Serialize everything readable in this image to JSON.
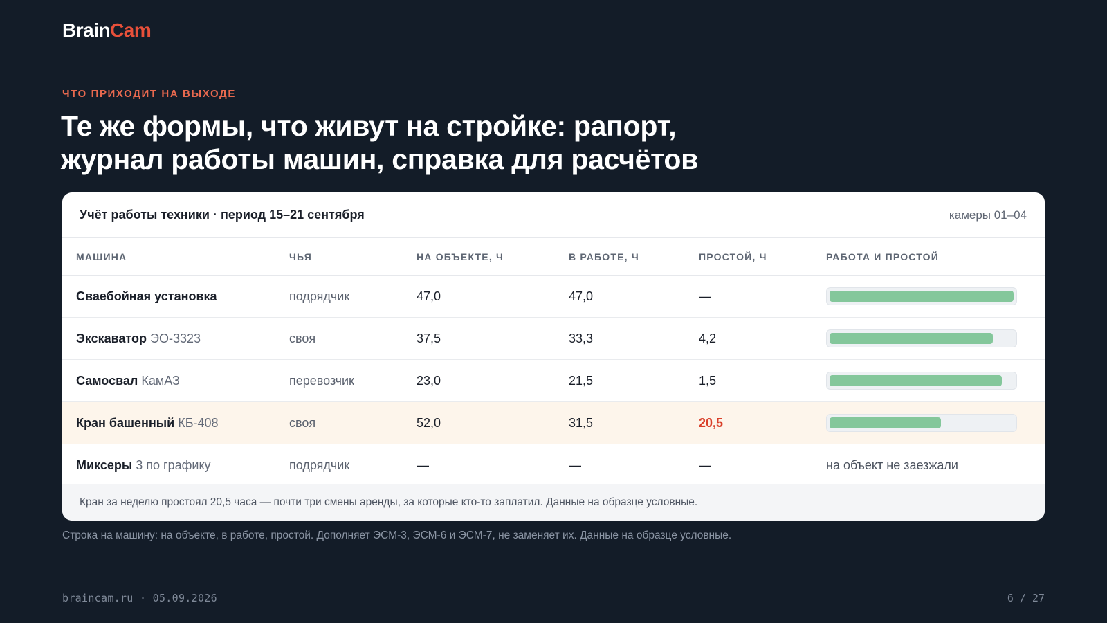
{
  "brand": {
    "part1": "Brain",
    "part2": "Cam"
  },
  "eyebrow": "ЧТО ПРИХОДИТ НА ВЫХОДЕ",
  "headline": {
    "line1": "Те же формы, что живут на стройке: рапорт,",
    "line2": "журнал работы машин, справка для расчётов"
  },
  "card": {
    "title": "Учёт работы техники · период 15–21 сентября",
    "meta": "камеры 01–04",
    "columns": [
      "МАШИНА",
      "ЧЬЯ",
      "НА ОБЪЕКТЕ, Ч",
      "В РАБОТЕ, Ч",
      "ПРОСТОЙ, Ч",
      "РАБОТА И ПРОСТОЙ"
    ],
    "rows": [
      {
        "name": "Сваебойная установка",
        "model": "",
        "owner": "подрядчик",
        "on_site": "47,0",
        "working": "47,0",
        "idle": "—",
        "work_ratio": 1.0,
        "note": ""
      },
      {
        "name": "Экскаватор",
        "model": "ЭО-3323",
        "owner": "своя",
        "on_site": "37,5",
        "working": "33,3",
        "idle": "4,2",
        "work_ratio": 0.888,
        "note": ""
      },
      {
        "name": "Самосвал",
        "model": "КамАЗ",
        "owner": "перевозчик",
        "on_site": "23,0",
        "working": "21,5",
        "idle": "1,5",
        "work_ratio": 0.935,
        "note": ""
      },
      {
        "name": "Кран башенный",
        "model": "КБ-408",
        "owner": "своя",
        "on_site": "52,0",
        "working": "31,5",
        "idle": "20,5",
        "work_ratio": 0.606,
        "note": ""
      },
      {
        "name": "Миксеры",
        "model": "3 по графику",
        "owner": "подрядчик",
        "on_site": "—",
        "working": "—",
        "idle": "—",
        "work_ratio": null,
        "note": "на объект не заезжали"
      }
    ],
    "footnote": "Кран за неделю простоял 20,5 часа — почти три смены аренды, за которые кто-то заплатил. Данные на образце условные."
  },
  "caption": "Строка на машину: на объекте, в работе, простой. Дополняет ЭСМ-3, ЭСМ-6 и ЭСМ-7, не заменяет их. Данные на образце условные.",
  "footer": {
    "left": "braincam.ru · 05.09.2026",
    "page": "6 / 27"
  },
  "colors": {
    "background": "#131c28",
    "accent": "#e8503a",
    "bar": "#84c79b",
    "alert": "#d9402a",
    "highlight_row": "#fdf5eb"
  }
}
